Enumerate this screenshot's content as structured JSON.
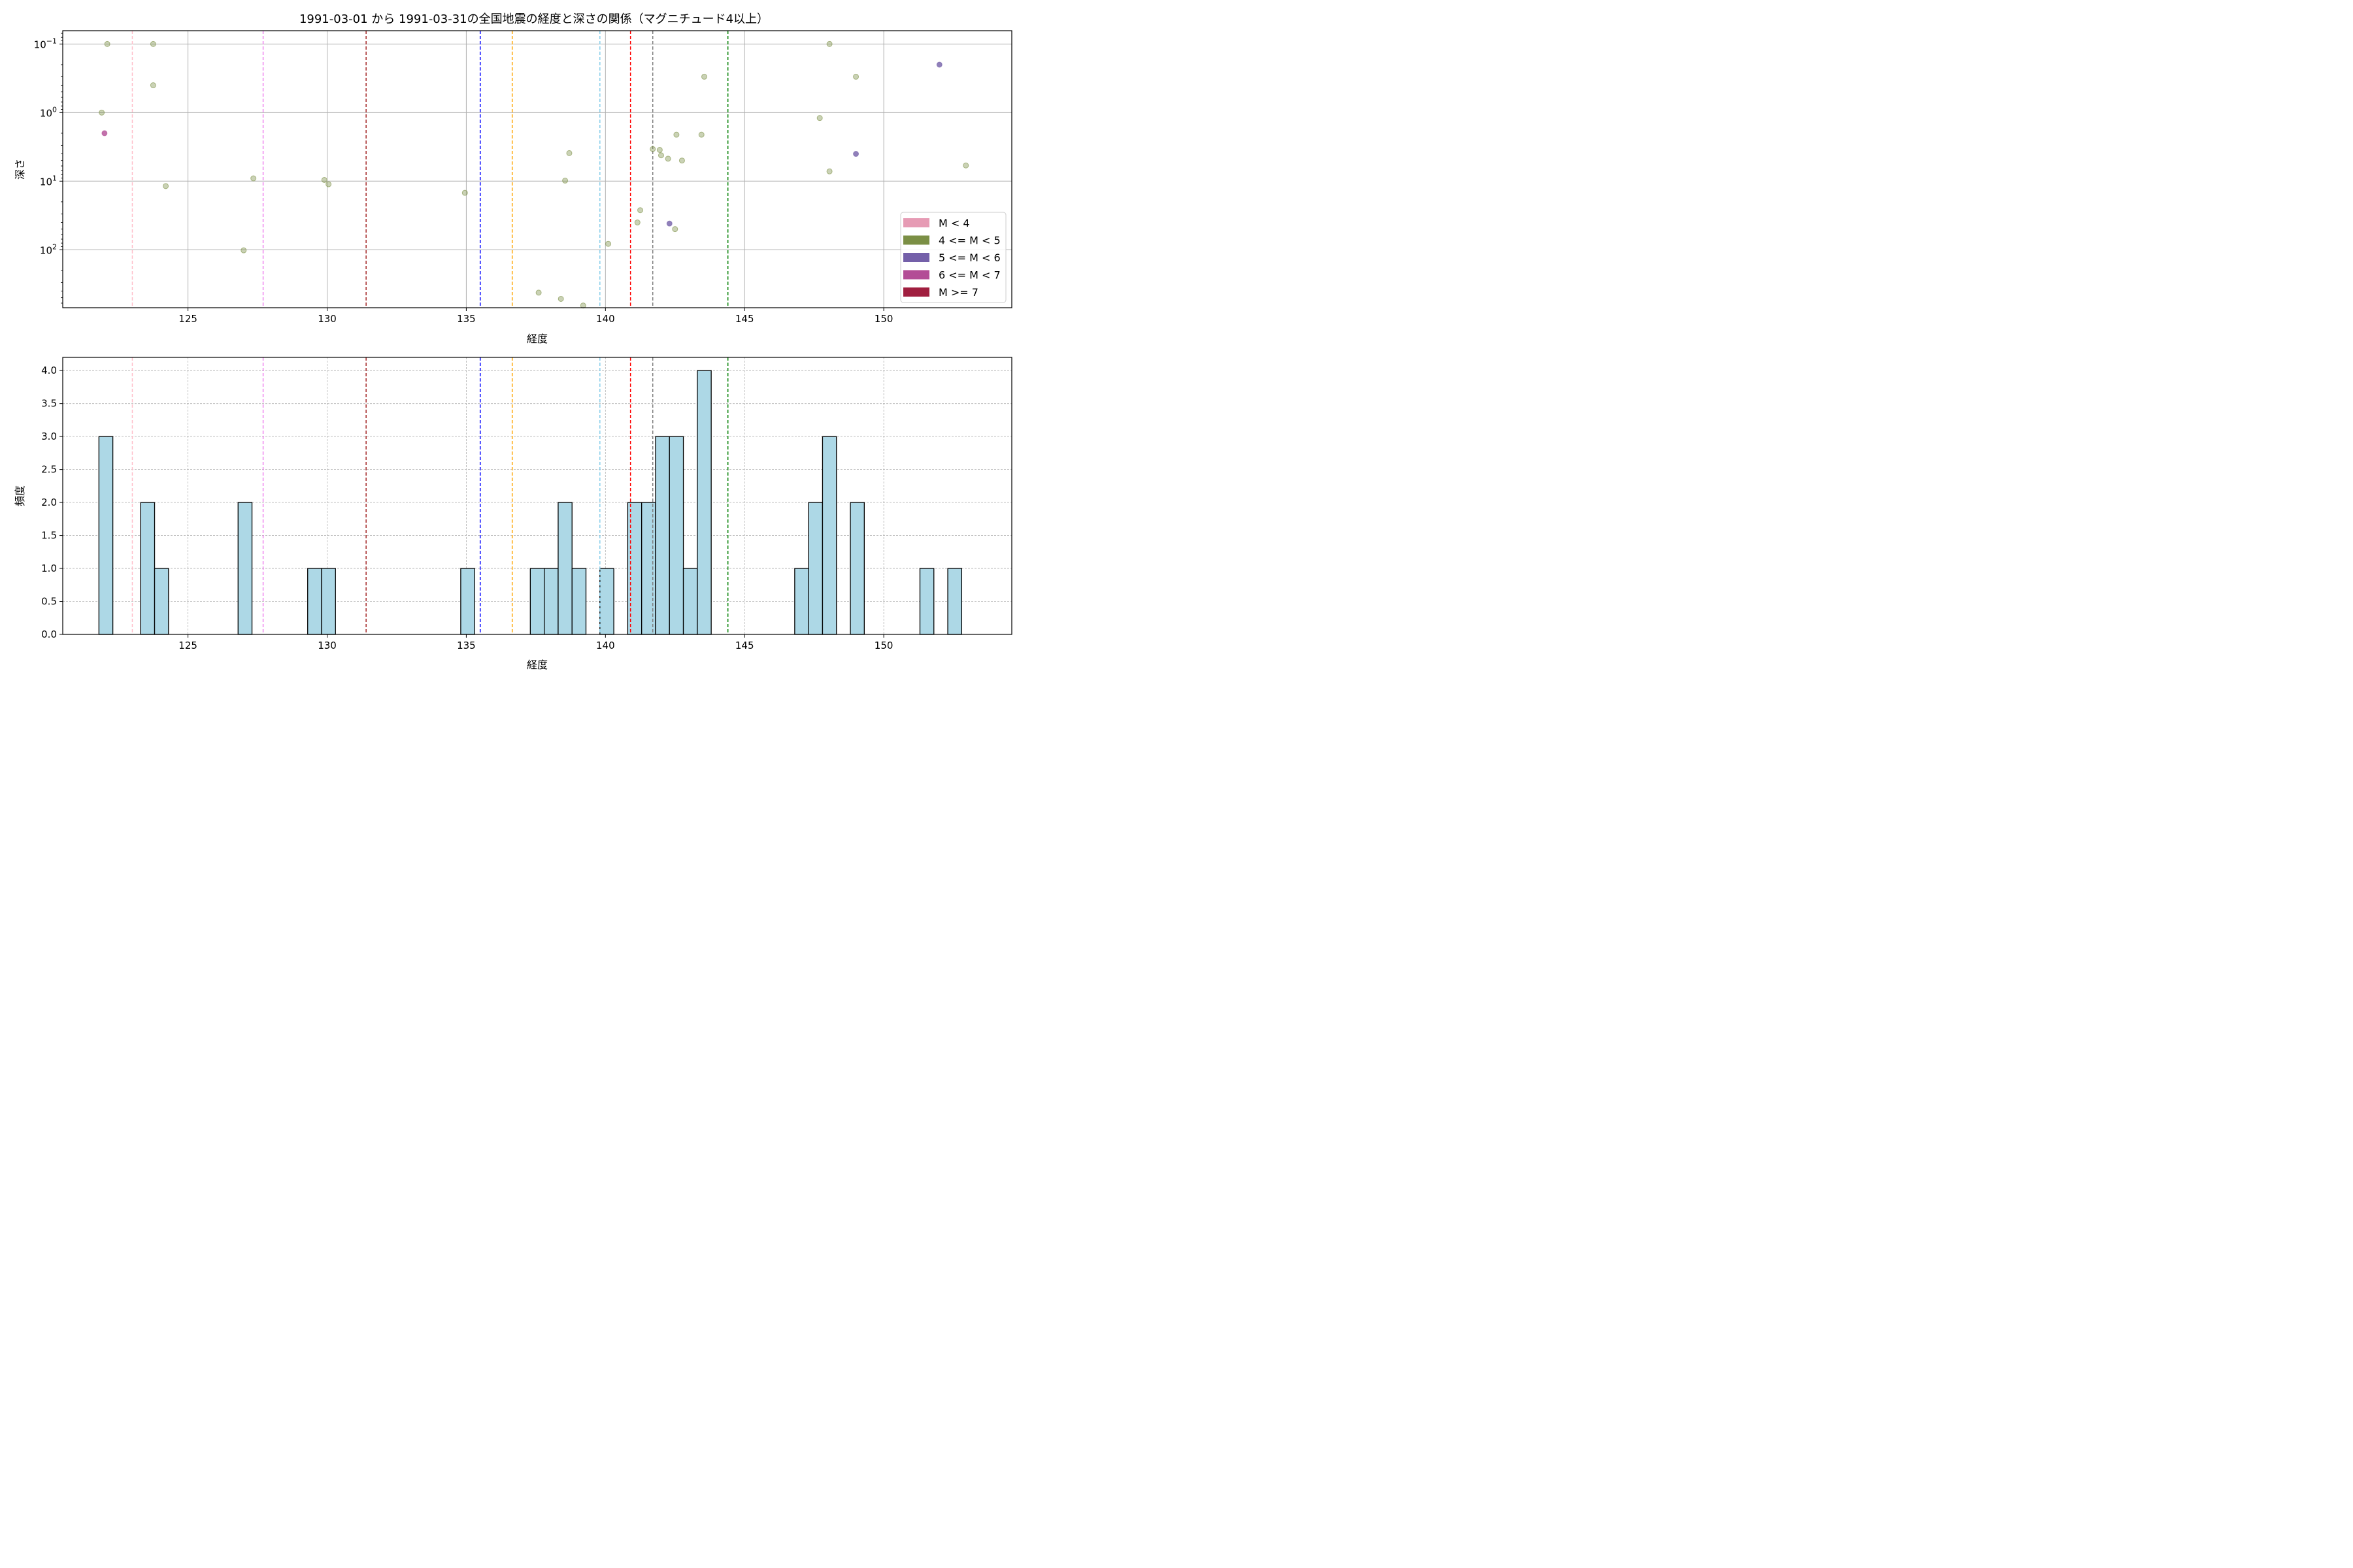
{
  "title": "1991-03-01 から 1991-03-31の全国地震の経度と深さの関係（マグニチュード4以上）",
  "colors": {
    "m_lt4": "#e69bb4",
    "m_4_5": "#7b8f45",
    "m_5_6": "#7460a9",
    "m_6_7": "#b34d96",
    "m_ge7": "#a01e3f",
    "hist_fill": "#add8e6",
    "grid": "#b0b0b0"
  },
  "chart_data": [
    {
      "type": "scatter",
      "xlabel": "経度",
      "ylabel": "深さ",
      "y_scale": "log",
      "y_inverted": true,
      "xlim": [
        120.5,
        154.6
      ],
      "ylim": [
        0.064,
        700
      ],
      "xticks": [
        125,
        130,
        135,
        140,
        145,
        150
      ],
      "yticks": [
        {
          "value": 0.1,
          "base": "10",
          "exp": "−1"
        },
        {
          "value": 1,
          "base": "10",
          "exp": "0"
        },
        {
          "value": 10,
          "base": "10",
          "exp": "1"
        },
        {
          "value": 100,
          "base": "10",
          "exp": "2"
        }
      ],
      "grid": true,
      "legend_position": "lower-right",
      "legend": [
        {
          "label": "M < 4",
          "color_key": "m_lt4"
        },
        {
          "label": "4 <= M < 5",
          "color_key": "m_4_5"
        },
        {
          "label": "5 <= M < 6",
          "color_key": "m_5_6"
        },
        {
          "label": "6 <= M < 7",
          "color_key": "m_6_7"
        },
        {
          "label": "M >= 7",
          "color_key": "m_ge7"
        }
      ],
      "vlines": [
        {
          "x": 123.0,
          "color": "#ffc0cb"
        },
        {
          "x": 127.7,
          "color": "#ee82ee"
        },
        {
          "x": 131.4,
          "color": "#a52a2a"
        },
        {
          "x": 135.5,
          "color": "#0000ff"
        },
        {
          "x": 136.65,
          "color": "#ffa500"
        },
        {
          "x": 139.8,
          "color": "#87ceeb"
        },
        {
          "x": 140.9,
          "color": "#ff0000"
        },
        {
          "x": 141.7,
          "color": "#808080"
        },
        {
          "x": 144.4,
          "color": "#008000"
        }
      ],
      "points": [
        {
          "x": 121.9,
          "y": 1.0,
          "class": "m_4_5"
        },
        {
          "x": 122.0,
          "y": 2.0,
          "class": "m_6_7"
        },
        {
          "x": 122.1,
          "y": 0.1,
          "class": "m_4_5"
        },
        {
          "x": 123.75,
          "y": 0.1,
          "class": "m_4_5"
        },
        {
          "x": 123.75,
          "y": 0.4,
          "class": "m_4_5"
        },
        {
          "x": 124.2,
          "y": 11.8,
          "class": "m_4_5"
        },
        {
          "x": 127.0,
          "y": 102,
          "class": "m_4_5"
        },
        {
          "x": 127.35,
          "y": 9.1,
          "class": "m_4_5"
        },
        {
          "x": 129.9,
          "y": 9.6,
          "class": "m_4_5"
        },
        {
          "x": 130.05,
          "y": 11.1,
          "class": "m_4_5"
        },
        {
          "x": 134.95,
          "y": 14.8,
          "class": "m_4_5"
        },
        {
          "x": 137.6,
          "y": 422,
          "class": "m_4_5"
        },
        {
          "x": 138.4,
          "y": 520,
          "class": "m_4_5"
        },
        {
          "x": 138.55,
          "y": 9.8,
          "class": "m_4_5"
        },
        {
          "x": 138.7,
          "y": 3.9,
          "class": "m_4_5"
        },
        {
          "x": 139.2,
          "y": 650,
          "class": "m_4_5"
        },
        {
          "x": 140.1,
          "y": 82,
          "class": "m_4_5"
        },
        {
          "x": 141.15,
          "y": 40,
          "class": "m_4_5"
        },
        {
          "x": 141.25,
          "y": 26.5,
          "class": "m_4_5"
        },
        {
          "x": 141.7,
          "y": 3.4,
          "class": "m_4_5"
        },
        {
          "x": 141.95,
          "y": 3.5,
          "class": "m_4_5"
        },
        {
          "x": 142.0,
          "y": 4.2,
          "class": "m_4_5"
        },
        {
          "x": 142.25,
          "y": 4.7,
          "class": "m_4_5"
        },
        {
          "x": 142.3,
          "y": 41.5,
          "class": "m_5_6"
        },
        {
          "x": 142.5,
          "y": 50,
          "class": "m_4_5"
        },
        {
          "x": 142.55,
          "y": 2.1,
          "class": "m_4_5"
        },
        {
          "x": 142.75,
          "y": 5.0,
          "class": "m_4_5"
        },
        {
          "x": 143.45,
          "y": 2.1,
          "class": "m_4_5"
        },
        {
          "x": 143.55,
          "y": 0.3,
          "class": "m_4_5"
        },
        {
          "x": 147.7,
          "y": 1.2,
          "class": "m_4_5"
        },
        {
          "x": 148.05,
          "y": 0.1,
          "class": "m_4_5"
        },
        {
          "x": 148.05,
          "y": 7.2,
          "class": "m_4_5"
        },
        {
          "x": 149.0,
          "y": 0.3,
          "class": "m_4_5"
        },
        {
          "x": 149.0,
          "y": 4.0,
          "class": "m_5_6"
        },
        {
          "x": 152.0,
          "y": 0.2,
          "class": "m_5_6"
        },
        {
          "x": 152.95,
          "y": 5.9,
          "class": "m_4_5"
        }
      ]
    },
    {
      "type": "bar",
      "subtype": "histogram",
      "xlabel": "経度",
      "ylabel": "頻度",
      "xlim": [
        120.5,
        154.6
      ],
      "ylim": [
        0,
        4.2
      ],
      "xticks": [
        125,
        130,
        135,
        140,
        145,
        150
      ],
      "yticks": [
        "0.0",
        "0.5",
        "1.0",
        "1.5",
        "2.0",
        "2.5",
        "3.0",
        "3.5",
        "4.0"
      ],
      "grid": true,
      "bins": [
        {
          "x0": 121.8,
          "x1": 122.3,
          "count": 3
        },
        {
          "x0": 123.3,
          "x1": 123.8,
          "count": 2
        },
        {
          "x0": 123.8,
          "x1": 124.3,
          "count": 1
        },
        {
          "x0": 126.8,
          "x1": 127.3,
          "count": 2
        },
        {
          "x0": 129.3,
          "x1": 129.8,
          "count": 1
        },
        {
          "x0": 129.8,
          "x1": 130.3,
          "count": 1
        },
        {
          "x0": 134.8,
          "x1": 135.3,
          "count": 1
        },
        {
          "x0": 137.3,
          "x1": 137.8,
          "count": 1
        },
        {
          "x0": 137.8,
          "x1": 138.3,
          "count": 1
        },
        {
          "x0": 138.3,
          "x1": 138.8,
          "count": 2
        },
        {
          "x0": 138.8,
          "x1": 139.3,
          "count": 1
        },
        {
          "x0": 139.8,
          "x1": 140.3,
          "count": 1
        },
        {
          "x0": 140.8,
          "x1": 141.3,
          "count": 2
        },
        {
          "x0": 141.3,
          "x1": 141.8,
          "count": 2
        },
        {
          "x0": 141.8,
          "x1": 142.3,
          "count": 3
        },
        {
          "x0": 142.3,
          "x1": 142.8,
          "count": 3
        },
        {
          "x0": 142.8,
          "x1": 143.3,
          "count": 1
        },
        {
          "x0": 143.3,
          "x1": 143.8,
          "count": 4
        },
        {
          "x0": 146.8,
          "x1": 147.3,
          "count": 1
        },
        {
          "x0": 147.3,
          "x1": 147.8,
          "count": 2
        },
        {
          "x0": 147.8,
          "x1": 148.3,
          "count": 3
        },
        {
          "x0": 148.8,
          "x1": 149.3,
          "count": 2
        },
        {
          "x0": 151.3,
          "x1": 151.8,
          "count": 1
        },
        {
          "x0": 152.3,
          "x1": 152.8,
          "count": 1
        }
      ],
      "vlines": [
        {
          "x": 123.0,
          "color": "#ffc0cb"
        },
        {
          "x": 127.7,
          "color": "#ee82ee"
        },
        {
          "x": 131.4,
          "color": "#a52a2a"
        },
        {
          "x": 135.5,
          "color": "#0000ff"
        },
        {
          "x": 136.65,
          "color": "#ffa500"
        },
        {
          "x": 139.8,
          "color": "#87ceeb"
        },
        {
          "x": 140.9,
          "color": "#ff0000"
        },
        {
          "x": 141.7,
          "color": "#808080"
        },
        {
          "x": 144.4,
          "color": "#008000"
        }
      ]
    }
  ]
}
